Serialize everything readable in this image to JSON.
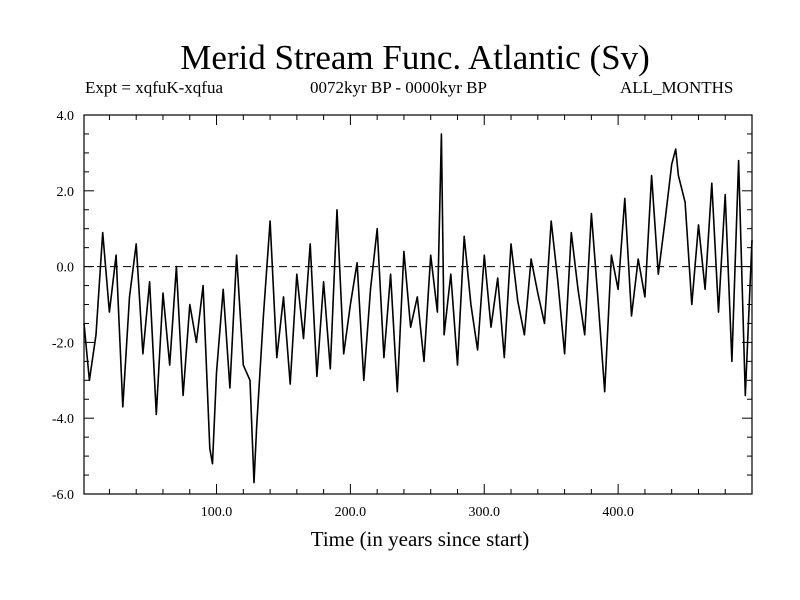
{
  "chart_data": {
    "type": "line",
    "title": "Merid Stream Func. Atlantic (Sv)",
    "subtitle_left": "Expt = xqfuK-xqfua",
    "subtitle_center": "0072kyr BP - 0000kyr BP",
    "subtitle_right": "ALL_MONTHS",
    "xlabel": "Time (in years since start)",
    "ylabel": "",
    "xlim": [
      1,
      500
    ],
    "ylim": [
      -6.0,
      4.0
    ],
    "xticks": [
      100,
      200,
      300,
      400
    ],
    "xtick_labels": [
      "100.0",
      "200.0",
      "300.0",
      "400.0"
    ],
    "yticks": [
      -6,
      -4,
      -2,
      0,
      2,
      4
    ],
    "ytick_labels": [
      "-6.0",
      "-4.0",
      "-2.0",
      "0.0",
      "2.0",
      "4.0"
    ],
    "reference_line": 0.0,
    "series": [
      {
        "name": "Merid Stream Func. Atlantic",
        "x": [
          1,
          5,
          10,
          15,
          20,
          25,
          30,
          35,
          40,
          45,
          50,
          55,
          60,
          65,
          70,
          75,
          80,
          85,
          90,
          95,
          97,
          100,
          105,
          110,
          115,
          120,
          125,
          128,
          130,
          135,
          140,
          145,
          150,
          155,
          160,
          165,
          170,
          175,
          180,
          185,
          190,
          195,
          200,
          205,
          210,
          215,
          220,
          225,
          230,
          235,
          240,
          245,
          250,
          255,
          260,
          265,
          268,
          270,
          275,
          280,
          285,
          290,
          295,
          300,
          305,
          310,
          315,
          320,
          325,
          330,
          335,
          340,
          345,
          350,
          355,
          360,
          365,
          370,
          375,
          380,
          385,
          390,
          395,
          400,
          405,
          410,
          415,
          420,
          425,
          430,
          435,
          440,
          443,
          445,
          450,
          455,
          460,
          465,
          470,
          475,
          480,
          485,
          490,
          495,
          500
        ],
        "values": [
          -1.5,
          -3.0,
          -1.8,
          0.9,
          -1.2,
          0.3,
          -3.7,
          -0.8,
          0.6,
          -2.3,
          -0.4,
          -3.9,
          -0.7,
          -2.6,
          0.0,
          -3.4,
          -1.0,
          -2.0,
          -0.5,
          -4.8,
          -5.2,
          -2.8,
          -0.6,
          -3.2,
          0.3,
          -2.6,
          -3.0,
          -5.7,
          -4.2,
          -1.3,
          1.2,
          -2.4,
          -0.8,
          -3.1,
          -0.2,
          -1.9,
          0.6,
          -2.9,
          -0.4,
          -2.7,
          1.5,
          -2.3,
          -1.0,
          0.1,
          -3.0,
          -0.6,
          1.0,
          -2.4,
          -0.2,
          -3.3,
          0.4,
          -1.6,
          -0.8,
          -2.5,
          0.3,
          -1.2,
          3.5,
          -1.8,
          -0.2,
          -2.6,
          0.8,
          -1.0,
          -2.2,
          0.3,
          -1.6,
          -0.3,
          -2.4,
          0.6,
          -0.9,
          -1.8,
          0.2,
          -0.7,
          -1.5,
          1.2,
          -0.4,
          -2.3,
          0.9,
          -0.6,
          -1.8,
          1.4,
          -0.9,
          -3.3,
          0.3,
          -0.6,
          1.8,
          -1.3,
          0.2,
          -0.8,
          2.4,
          -0.2,
          1.2,
          2.7,
          3.1,
          2.4,
          1.7,
          -1.0,
          1.1,
          -0.6,
          2.2,
          -1.2,
          1.9,
          -2.5,
          2.8,
          -3.4,
          0.7
        ]
      }
    ]
  }
}
